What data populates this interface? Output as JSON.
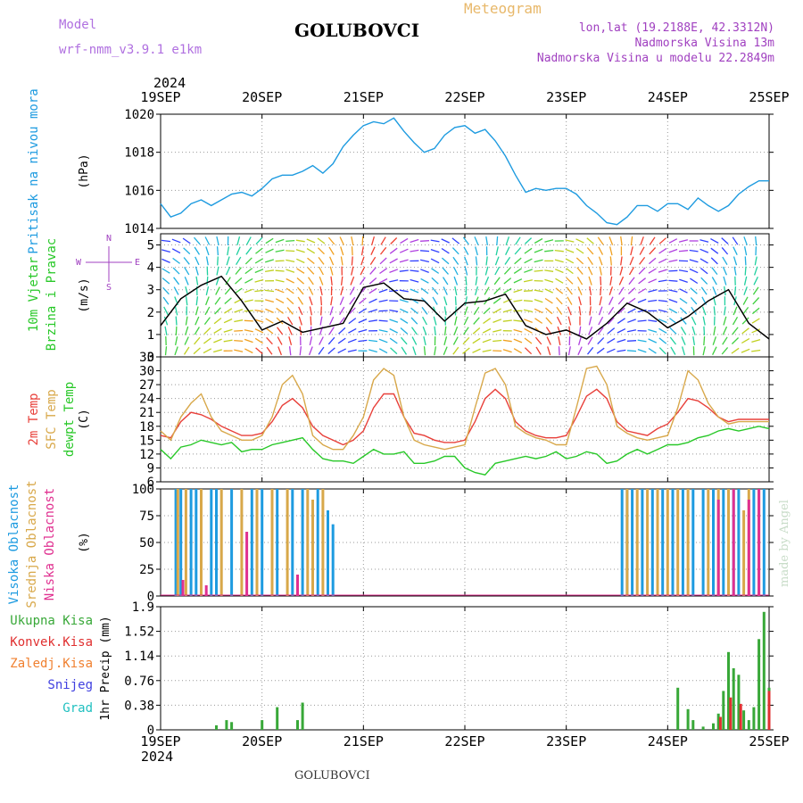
{
  "header": {
    "station": "GOLUBOVCI",
    "meteogram": "Meteogram",
    "model_label": "Model",
    "model_name": "wrf-nmm_v3.9.1 e1km",
    "coords": "lon,lat (19.2188E, 42.3312N)",
    "elevation": "Nadmorska Visina 13m",
    "model_elevation": "Nadmorska Visina u modelu 22.2849m",
    "year": "2024"
  },
  "footer": {
    "station": "GOLUBOVCI",
    "signature": "made by Angel"
  },
  "time_axis": [
    "19SEP",
    "20SEP",
    "21SEP",
    "22SEP",
    "23SEP",
    "24SEP",
    "25SEP"
  ],
  "colors": {
    "pressure": "#1e9be0",
    "temp2m": "#e8403a",
    "sfc": "#d8a84a",
    "dewpt": "#28c828",
    "high_cloud": "#1e9be0",
    "mid_cloud": "#d8a84a",
    "low_cloud": "#e03090",
    "total_precip": "#38a838",
    "conv_precip": "#e03030",
    "frozen": "#f08030",
    "snow": "#4040e0",
    "grad": "#20c0c0"
  },
  "chart_data": [
    {
      "type": "line",
      "panel": "pressure",
      "ylabel_left": "Pritisak na nivou mora",
      "ylabel": "(hPa)",
      "ylim": [
        1014,
        1020
      ],
      "yticks": [
        "1014",
        "1016",
        "1018",
        "1020"
      ],
      "x": [
        0,
        0.1,
        0.2,
        0.3,
        0.4,
        0.5,
        0.6,
        0.7,
        0.8,
        0.9,
        1.0,
        1.1,
        1.2,
        1.3,
        1.4,
        1.5,
        1.6,
        1.7,
        1.8,
        1.9,
        2.0,
        2.1,
        2.2,
        2.3,
        2.4,
        2.5,
        2.6,
        2.7,
        2.8,
        2.9,
        3.0,
        3.1,
        3.2,
        3.3,
        3.4,
        3.5,
        3.6,
        3.7,
        3.8,
        3.9,
        4.0,
        4.1,
        4.2,
        4.3,
        4.4,
        4.5,
        4.6,
        4.7,
        4.8,
        4.9,
        5.0,
        5.1,
        5.2,
        5.3,
        5.4,
        5.5,
        5.6,
        5.7,
        5.8,
        5.9,
        6.0
      ],
      "series": [
        {
          "values": [
            1015.3,
            1014.6,
            1014.8,
            1015.3,
            1015.5,
            1015.2,
            1015.5,
            1015.8,
            1015.9,
            1015.7,
            1016.1,
            1016.6,
            1016.8,
            1016.8,
            1017.0,
            1017.3,
            1016.9,
            1017.4,
            1018.3,
            1018.9,
            1019.4,
            1019.6,
            1019.5,
            1019.8,
            1019.1,
            1018.5,
            1018.0,
            1018.2,
            1018.9,
            1019.3,
            1019.4,
            1019.0,
            1019.2,
            1018.6,
            1017.8,
            1016.8,
            1015.9,
            1016.1,
            1016.0,
            1016.1,
            1016.1,
            1015.8,
            1015.2,
            1014.8,
            1014.3,
            1014.2,
            1014.6,
            1015.2,
            1015.2,
            1014.9,
            1015.3,
            1015.3,
            1015.0,
            1015.6,
            1015.2,
            1014.9,
            1015.2,
            1015.8,
            1016.2,
            1016.5,
            1016.5
          ]
        }
      ]
    },
    {
      "type": "line",
      "panel": "wind",
      "ylabel_left": "10m Vjetar Brzina i Pravac",
      "ylabel": "(m/s)",
      "ylim": [
        0,
        5.5
      ],
      "yticks": [
        "0",
        "1",
        "2",
        "3",
        "4",
        "5"
      ],
      "x": [
        0,
        0.2,
        0.4,
        0.6,
        0.8,
        1.0,
        1.2,
        1.4,
        1.6,
        1.8,
        2.0,
        2.2,
        2.4,
        2.6,
        2.8,
        3.0,
        3.2,
        3.4,
        3.6,
        3.8,
        4.0,
        4.2,
        4.4,
        4.6,
        4.8,
        5.0,
        5.2,
        5.4,
        5.6,
        5.8,
        6.0
      ],
      "series": [
        {
          "name": "wind",
          "values": [
            1.4,
            2.6,
            3.2,
            3.6,
            2.5,
            1.2,
            1.6,
            1.1,
            1.3,
            1.5,
            3.1,
            3.3,
            2.6,
            2.5,
            1.6,
            2.4,
            2.5,
            2.8,
            1.4,
            1.0,
            1.2,
            0.8,
            1.5,
            2.4,
            2.0,
            1.3,
            1.8,
            2.5,
            3.0,
            1.5,
            0.8
          ]
        }
      ],
      "direction_key": [
        "N",
        "W",
        "E",
        "S"
      ]
    },
    {
      "type": "line",
      "panel": "temperature",
      "ylabel_left": [
        "2m Temp",
        "SFC Temp",
        "dewpt Temp"
      ],
      "ylabel": "(C)",
      "ylim": [
        6,
        33
      ],
      "yticks": [
        "6",
        "9",
        "12",
        "15",
        "18",
        "21",
        "24",
        "27",
        "30",
        "33"
      ],
      "x": [
        0,
        0.1,
        0.2,
        0.3,
        0.4,
        0.5,
        0.6,
        0.7,
        0.8,
        0.9,
        1.0,
        1.1,
        1.2,
        1.3,
        1.4,
        1.5,
        1.6,
        1.7,
        1.8,
        1.9,
        2.0,
        2.1,
        2.2,
        2.3,
        2.4,
        2.5,
        2.6,
        2.7,
        2.8,
        2.9,
        3.0,
        3.1,
        3.2,
        3.3,
        3.4,
        3.5,
        3.6,
        3.7,
        3.8,
        3.9,
        4.0,
        4.1,
        4.2,
        4.3,
        4.4,
        4.5,
        4.6,
        4.7,
        4.8,
        4.9,
        5.0,
        5.1,
        5.2,
        5.3,
        5.4,
        5.5,
        5.6,
        5.7,
        5.8,
        5.9,
        6.0
      ],
      "series": [
        {
          "name": "2m Temp",
          "values": [
            16.0,
            15.5,
            19.0,
            21.0,
            20.5,
            19.5,
            18.0,
            17.0,
            16.0,
            16.0,
            16.5,
            19.0,
            22.5,
            24.0,
            22.0,
            18.0,
            16.0,
            15.0,
            14.0,
            15.0,
            17.0,
            22.0,
            25.0,
            25.0,
            20.0,
            16.5,
            16.0,
            15.0,
            14.5,
            14.5,
            15.0,
            19.0,
            24.0,
            26.0,
            24.0,
            19.0,
            17.0,
            16.0,
            15.5,
            15.5,
            16.0,
            20.0,
            24.5,
            26.0,
            24.0,
            19.0,
            17.0,
            16.5,
            16.0,
            17.5,
            18.5,
            21.0,
            24.0,
            23.5,
            22.0,
            20.0,
            19.0,
            19.5,
            19.5,
            19.5,
            19.5
          ]
        },
        {
          "name": "SFC Temp",
          "values": [
            17.0,
            15.0,
            20.0,
            23.0,
            25.0,
            20.0,
            17.0,
            16.0,
            15.0,
            15.0,
            16.0,
            20.0,
            27.0,
            29.0,
            25.0,
            16.0,
            14.0,
            13.0,
            13.0,
            16.0,
            20.0,
            28.0,
            30.5,
            29.0,
            20.0,
            15.0,
            14.0,
            13.5,
            13.0,
            13.5,
            14.0,
            22.0,
            29.5,
            30.5,
            27.0,
            18.0,
            16.5,
            15.5,
            15.0,
            14.0,
            14.0,
            22.0,
            30.5,
            31.0,
            27.0,
            18.0,
            16.5,
            15.5,
            15.0,
            15.5,
            16.0,
            22.0,
            30.0,
            28.0,
            23.0,
            20.0,
            18.5,
            19.0,
            19.0,
            19.0,
            19.0
          ]
        },
        {
          "name": "dewpt Temp",
          "values": [
            13.0,
            11.0,
            13.5,
            14.0,
            15.0,
            14.5,
            14.0,
            14.5,
            12.5,
            13.0,
            13.0,
            14.0,
            14.5,
            15.0,
            15.5,
            13.0,
            11.0,
            10.5,
            10.5,
            10.0,
            11.5,
            13.0,
            12.0,
            12.0,
            12.5,
            10.0,
            10.0,
            10.5,
            11.5,
            11.5,
            9.0,
            8.0,
            7.5,
            10.0,
            10.5,
            11.0,
            11.5,
            11.0,
            11.5,
            12.5,
            11.0,
            11.5,
            12.5,
            12.0,
            10.0,
            10.5,
            12.0,
            13.0,
            12.0,
            13.0,
            14.0,
            14.0,
            14.5,
            15.5,
            16.0,
            17.0,
            17.5,
            17.0,
            17.5,
            18.0,
            17.5
          ]
        }
      ]
    },
    {
      "type": "bar",
      "panel": "cloud",
      "ylabel_left": [
        "Visoka Oblacnost",
        "Srednja Oblacnost",
        "Niska Oblacnost"
      ],
      "ylabel": "(%)",
      "ylim": [
        0,
        100
      ],
      "yticks": [
        "0",
        "25",
        "50",
        "75",
        "100"
      ],
      "series": [
        {
          "name": "Visoka Oblacnost",
          "x": [
            0.15,
            0.2,
            0.3,
            0.35,
            0.5,
            0.55,
            0.7,
            0.9,
            1.0,
            1.15,
            1.3,
            1.4,
            1.55,
            1.65,
            1.7,
            4.55,
            4.6,
            4.65,
            4.75,
            4.85,
            4.95,
            5.05,
            5.15,
            5.25,
            5.35,
            5.45,
            5.55,
            5.65,
            5.7,
            5.85,
            5.95
          ],
          "values": [
            100,
            100,
            100,
            100,
            100,
            100,
            100,
            100,
            100,
            100,
            100,
            100,
            100,
            80,
            67,
            100,
            100,
            100,
            100,
            100,
            100,
            100,
            100,
            100,
            100,
            100,
            100,
            100,
            100,
            100,
            100
          ]
        },
        {
          "name": "Srednja Oblacnost",
          "x": [
            0.17,
            0.25,
            0.4,
            0.6,
            0.8,
            0.95,
            1.1,
            1.25,
            1.45,
            1.5,
            1.6,
            4.6,
            4.7,
            4.8,
            4.9,
            5.0,
            5.1,
            5.2,
            5.4,
            5.5,
            5.6,
            5.75,
            5.8,
            5.9
          ],
          "values": [
            100,
            100,
            100,
            100,
            100,
            100,
            100,
            100,
            100,
            90,
            100,
            100,
            100,
            100,
            100,
            100,
            100,
            100,
            100,
            100,
            100,
            80,
            100,
            100
          ]
        },
        {
          "name": "Niska Oblacnost",
          "x": [
            0.22,
            0.45,
            0.85,
            1.35,
            5.5,
            5.65,
            5.8,
            5.9
          ],
          "values": [
            15,
            10,
            60,
            20,
            90,
            100,
            90,
            100
          ]
        }
      ]
    },
    {
      "type": "bar",
      "panel": "precip",
      "ylabel_left": [
        "Ukupna Kisa",
        "Konvek.Kisa",
        "Zaledj.Kisa",
        "Snijeg",
        "Grad"
      ],
      "ylabel": "1hr Precip (mm)",
      "ylim": [
        0,
        1.9
      ],
      "yticks": [
        "0",
        "0.38",
        "0.76",
        "1.14",
        "1.52",
        "1.9"
      ],
      "series": [
        {
          "name": "Ukupna Kisa",
          "x": [
            0.55,
            0.65,
            0.7,
            1.0,
            1.15,
            1.35,
            1.4,
            5.1,
            5.2,
            5.25,
            5.35,
            5.45,
            5.5,
            5.55,
            5.6,
            5.65,
            5.7,
            5.75,
            5.8,
            5.85,
            5.9,
            5.95,
            6.0
          ],
          "values": [
            0.07,
            0.15,
            0.12,
            0.15,
            0.35,
            0.15,
            0.42,
            0.65,
            0.32,
            0.15,
            0.05,
            0.1,
            0.25,
            0.6,
            1.2,
            0.95,
            0.85,
            0.3,
            0.15,
            0.35,
            1.4,
            1.82,
            0.65
          ]
        },
        {
          "name": "Konvek.Kisa",
          "x": [
            5.52,
            5.62,
            5.72,
            6.0
          ],
          "values": [
            0.2,
            0.5,
            0.4,
            0.6
          ]
        }
      ]
    }
  ]
}
